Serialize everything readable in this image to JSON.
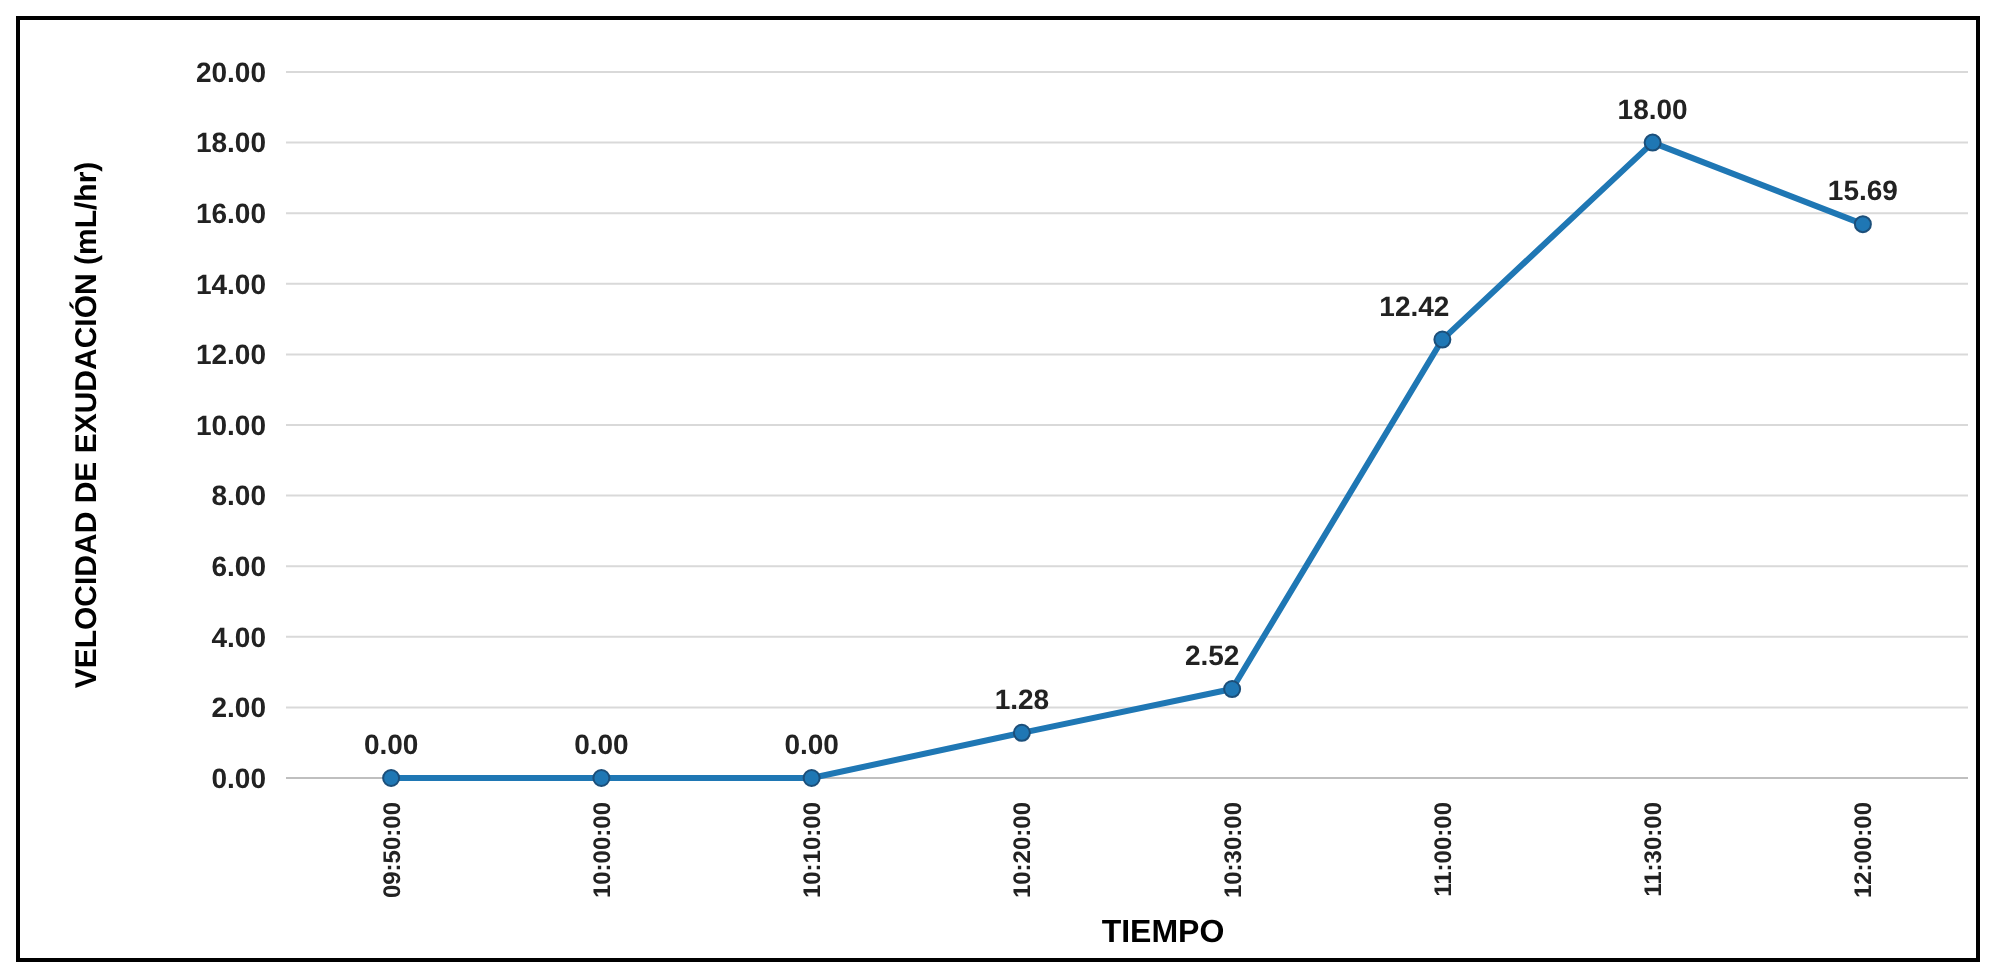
{
  "chart_data": {
    "type": "line",
    "xlabel": "TIEMPO",
    "ylabel": "VELOCIDAD DE EXUDACIÓN (mL/hr)",
    "categories": [
      "09:50:00",
      "10:00:00",
      "10:10:00",
      "10:20:00",
      "10:30:00",
      "11:00:00",
      "11:30:00",
      "12:00:00"
    ],
    "series": [
      {
        "color": "#1f77b4",
        "values": [
          0,
          0,
          0,
          1.28,
          2.52,
          12.42,
          18,
          15.69
        ],
        "value_labels": [
          "0.00",
          "0.00",
          "0.00",
          "1.28",
          "2.52",
          "12.42",
          "18.00",
          "15.69"
        ]
      }
    ],
    "ylim": [
      0,
      20
    ],
    "yticks": [
      {
        "value": 0,
        "label": "0.00"
      },
      {
        "value": 2,
        "label": "2.00"
      },
      {
        "value": 4,
        "label": "4.00"
      },
      {
        "value": 6,
        "label": "6.00"
      },
      {
        "value": 8,
        "label": "8.00"
      },
      {
        "value": 10,
        "label": "10.00"
      },
      {
        "value": 12,
        "label": "12.00"
      },
      {
        "value": 14,
        "label": "14.00"
      },
      {
        "value": 16,
        "label": "16.00"
      },
      {
        "value": 18,
        "label": "18.00"
      },
      {
        "value": 20,
        "label": "20.00"
      }
    ],
    "grid": "y",
    "marker": "circle",
    "line_style": "solid"
  }
}
